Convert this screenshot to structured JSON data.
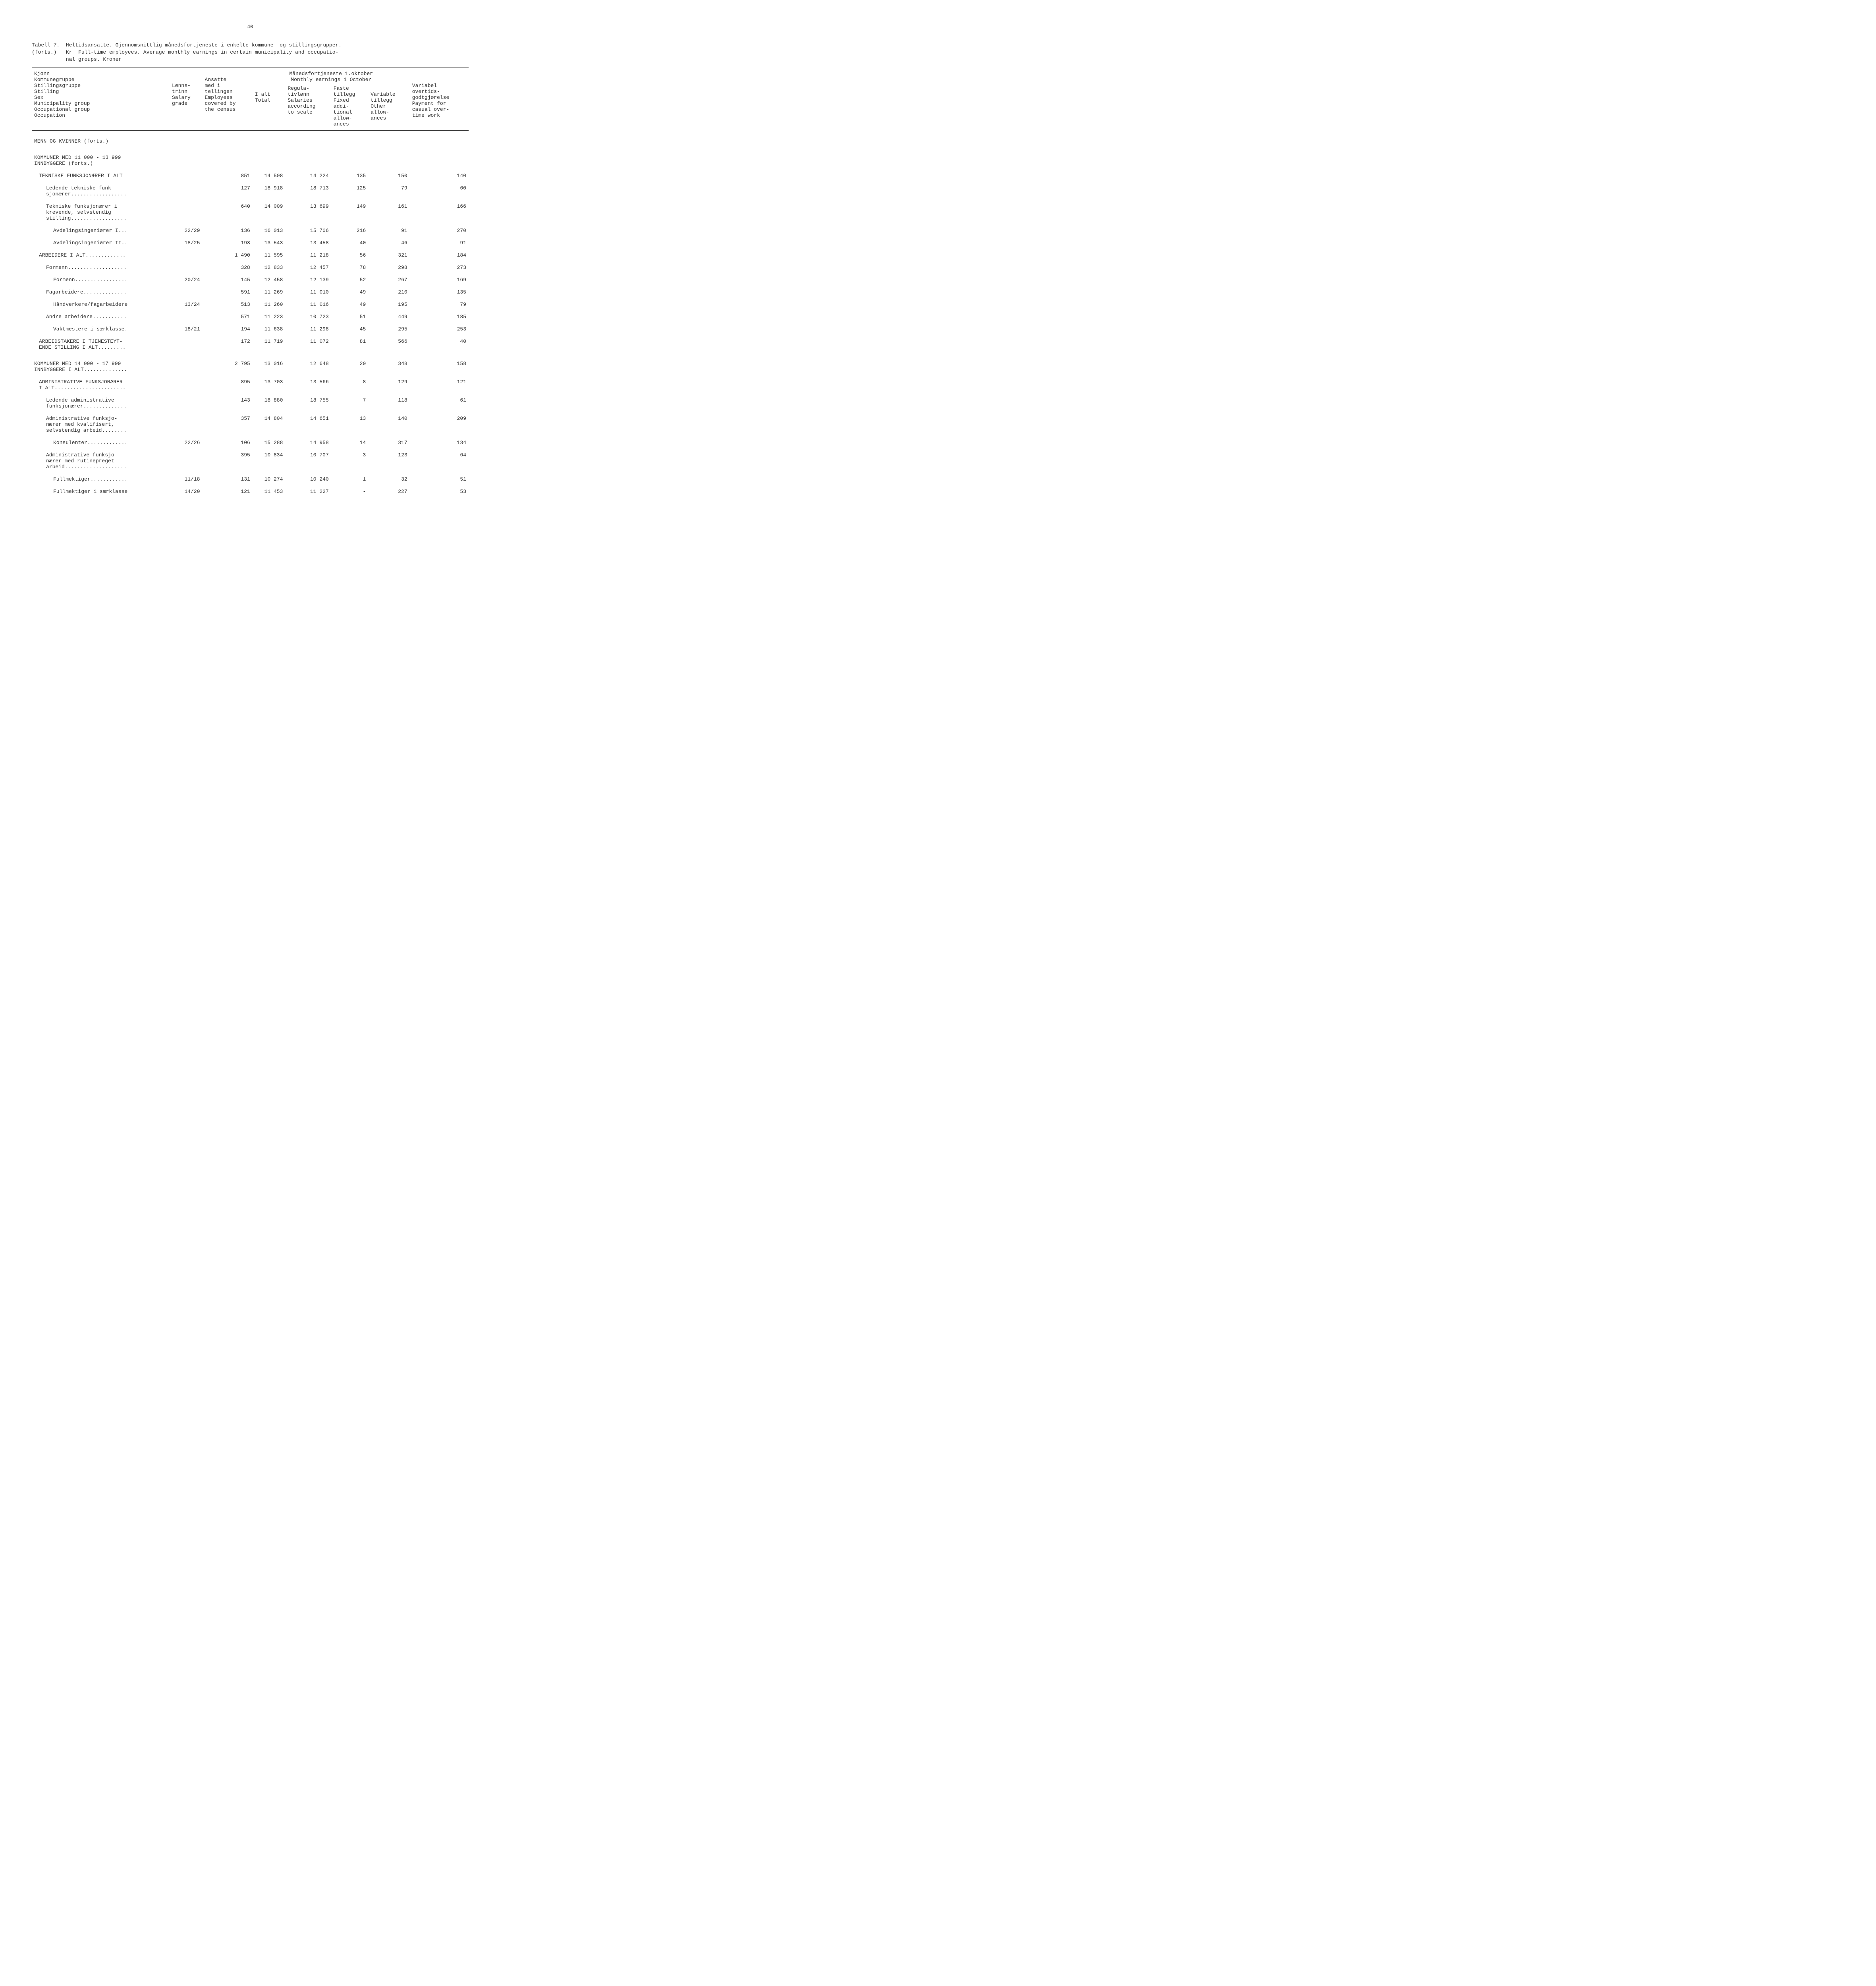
{
  "page_number": "40",
  "caption_line1": "Tabell 7.  Heltidsansatte. Gjennomsnittlig månedsfortjeneste i enkelte kommune- og stillingsgrupper.",
  "caption_line2": "(forts.)   Kr  Full-time employees. Average monthly earnings in certain municipality and occupatio-",
  "caption_line3": "           nal groups. Kroner",
  "columns": {
    "c1a": "Kjønn",
    "c1b": "Kommunegruppe",
    "c1c": "Stillingsgruppe",
    "c1d": "Stilling",
    "c1e": "Sex",
    "c1f": "Municipality group",
    "c1g": "Occupational group",
    "c1h": "Occupation",
    "c2a": "Lønns-",
    "c2b": "trinn",
    "c2c": "Salary",
    "c2d": "grade",
    "c3a": "Ansatte",
    "c3b": "med i",
    "c3c": "tellingen",
    "c3d": "Employees",
    "c3e": "covered by",
    "c3f": "the census",
    "earnings_header1": "Månedsfortjeneste 1.oktober",
    "earnings_header2": "Monthly earnings 1 October",
    "c4a": "I alt",
    "c4b": "Total",
    "c5a": "Regula-",
    "c5b": "tivlønn",
    "c5c": "Salaries",
    "c5d": "according",
    "c5e": "to scale",
    "c6a": "Faste",
    "c6b": "tillegg",
    "c6c": "Fixed",
    "c6d": "addi-",
    "c6e": "tional",
    "c6f": "allow-",
    "c6g": "ances",
    "c7a": "Variable",
    "c7b": "tillegg",
    "c7c": "Other",
    "c7d": "allow-",
    "c7e": "ances",
    "c8a": "Variabel",
    "c8b": "overtids-",
    "c8c": "godtgjørelse",
    "c8d": "Payment for",
    "c8e": "casual over-",
    "c8f": "time work"
  },
  "section1": "MENN OG KVINNER (forts.)",
  "section2a": "KOMMUNER MED 11 000 - 13 999",
  "section2b": "INNBYGGERE (forts.)",
  "rows": [
    {
      "occ": "TEKNISKE FUNKSJONÆRER I ALT",
      "ind": 1,
      "grade": "",
      "emp": "851",
      "total": "14 508",
      "reg": "14 224",
      "fixed": "135",
      "var": "150",
      "ot": "140"
    },
    {
      "occ": "Ledende tekniske funk-\nsjonærer..................",
      "ind": 2,
      "grade": "",
      "emp": "127",
      "total": "18 918",
      "reg": "18 713",
      "fixed": "125",
      "var": "79",
      "ot": "60"
    },
    {
      "occ": "Tekniske funksjonærer i\nkrevende, selvstendig\nstilling..................",
      "ind": 2,
      "grade": "",
      "emp": "640",
      "total": "14 009",
      "reg": "13 699",
      "fixed": "149",
      "var": "161",
      "ot": "166"
    },
    {
      "occ": "Avdelingsingeniører I...",
      "ind": 3,
      "grade": "22/29",
      "emp": "136",
      "total": "16 013",
      "reg": "15 706",
      "fixed": "216",
      "var": "91",
      "ot": "270"
    },
    {
      "occ": "Avdelingsingeniører II..",
      "ind": 3,
      "grade": "18/25",
      "emp": "193",
      "total": "13 543",
      "reg": "13 458",
      "fixed": "40",
      "var": "46",
      "ot": "91"
    },
    {
      "occ": "ARBEIDERE I ALT.............",
      "ind": 1,
      "grade": "",
      "emp": "1 490",
      "total": "11 595",
      "reg": "11 218",
      "fixed": "56",
      "var": "321",
      "ot": "184"
    },
    {
      "occ": "Formenn...................",
      "ind": 2,
      "grade": "",
      "emp": "328",
      "total": "12 833",
      "reg": "12 457",
      "fixed": "78",
      "var": "298",
      "ot": "273"
    },
    {
      "occ": "Formenn.................",
      "ind": 3,
      "grade": "20/24",
      "emp": "145",
      "total": "12 458",
      "reg": "12 139",
      "fixed": "52",
      "var": "267",
      "ot": "169"
    },
    {
      "occ": "Fagarbeidere..............",
      "ind": 2,
      "grade": "",
      "emp": "591",
      "total": "11 269",
      "reg": "11 010",
      "fixed": "49",
      "var": "210",
      "ot": "135"
    },
    {
      "occ": "Håndverkere/fagarbeidere",
      "ind": 3,
      "grade": "13/24",
      "emp": "513",
      "total": "11 260",
      "reg": "11 016",
      "fixed": "49",
      "var": "195",
      "ot": "79"
    },
    {
      "occ": "Andre arbeidere...........",
      "ind": 2,
      "grade": "",
      "emp": "571",
      "total": "11 223",
      "reg": "10 723",
      "fixed": "51",
      "var": "449",
      "ot": "185"
    },
    {
      "occ": "Vaktmestere i særklasse.",
      "ind": 3,
      "grade": "18/21",
      "emp": "194",
      "total": "11 638",
      "reg": "11 298",
      "fixed": "45",
      "var": "295",
      "ot": "253"
    },
    {
      "occ": "ARBEIDSTAKERE I TJENESTEYT-\nENDE STILLING I ALT.........",
      "ind": 1,
      "grade": "",
      "emp": "172",
      "total": "11 719",
      "reg": "11 072",
      "fixed": "81",
      "var": "566",
      "ot": "40"
    }
  ],
  "section3a": "KOMMUNER MED 14 000 - 17 999",
  "section3b": "INNBYGGERE I ALT..............",
  "section3row": {
    "grade": "",
    "emp": "2 795",
    "total": "13 016",
    "reg": "12 648",
    "fixed": "20",
    "var": "348",
    "ot": "158"
  },
  "rows2": [
    {
      "occ": "ADMINISTRATIVE FUNKSJONÆRER\nI ALT.......................",
      "ind": 1,
      "grade": "",
      "emp": "895",
      "total": "13 703",
      "reg": "13 566",
      "fixed": "8",
      "var": "129",
      "ot": "121"
    },
    {
      "occ": "Ledende administrative\nfunksjonærer..............",
      "ind": 2,
      "grade": "",
      "emp": "143",
      "total": "18 880",
      "reg": "18 755",
      "fixed": "7",
      "var": "118",
      "ot": "61"
    },
    {
      "occ": "Administrative funksjo-\nnærer med kvalifisert,\nselvstendig arbeid........",
      "ind": 2,
      "grade": "",
      "emp": "357",
      "total": "14 804",
      "reg": "14 651",
      "fixed": "13",
      "var": "140",
      "ot": "209"
    },
    {
      "occ": "Konsulenter.............",
      "ind": 3,
      "grade": "22/26",
      "emp": "106",
      "total": "15 288",
      "reg": "14 958",
      "fixed": "14",
      "var": "317",
      "ot": "134"
    },
    {
      "occ": "Administrative funksjo-\nnærer med rutinepreget\narbeid....................",
      "ind": 2,
      "grade": "",
      "emp": "395",
      "total": "10 834",
      "reg": "10 707",
      "fixed": "3",
      "var": "123",
      "ot": "64"
    },
    {
      "occ": "Fullmektiger............",
      "ind": 3,
      "grade": "11/18",
      "emp": "131",
      "total": "10 274",
      "reg": "10 240",
      "fixed": "1",
      "var": "32",
      "ot": "51"
    },
    {
      "occ": "Fullmektiger i særklasse",
      "ind": 3,
      "grade": "14/20",
      "emp": "121",
      "total": "11 453",
      "reg": "11 227",
      "fixed": "-",
      "var": "227",
      "ot": "53"
    }
  ]
}
